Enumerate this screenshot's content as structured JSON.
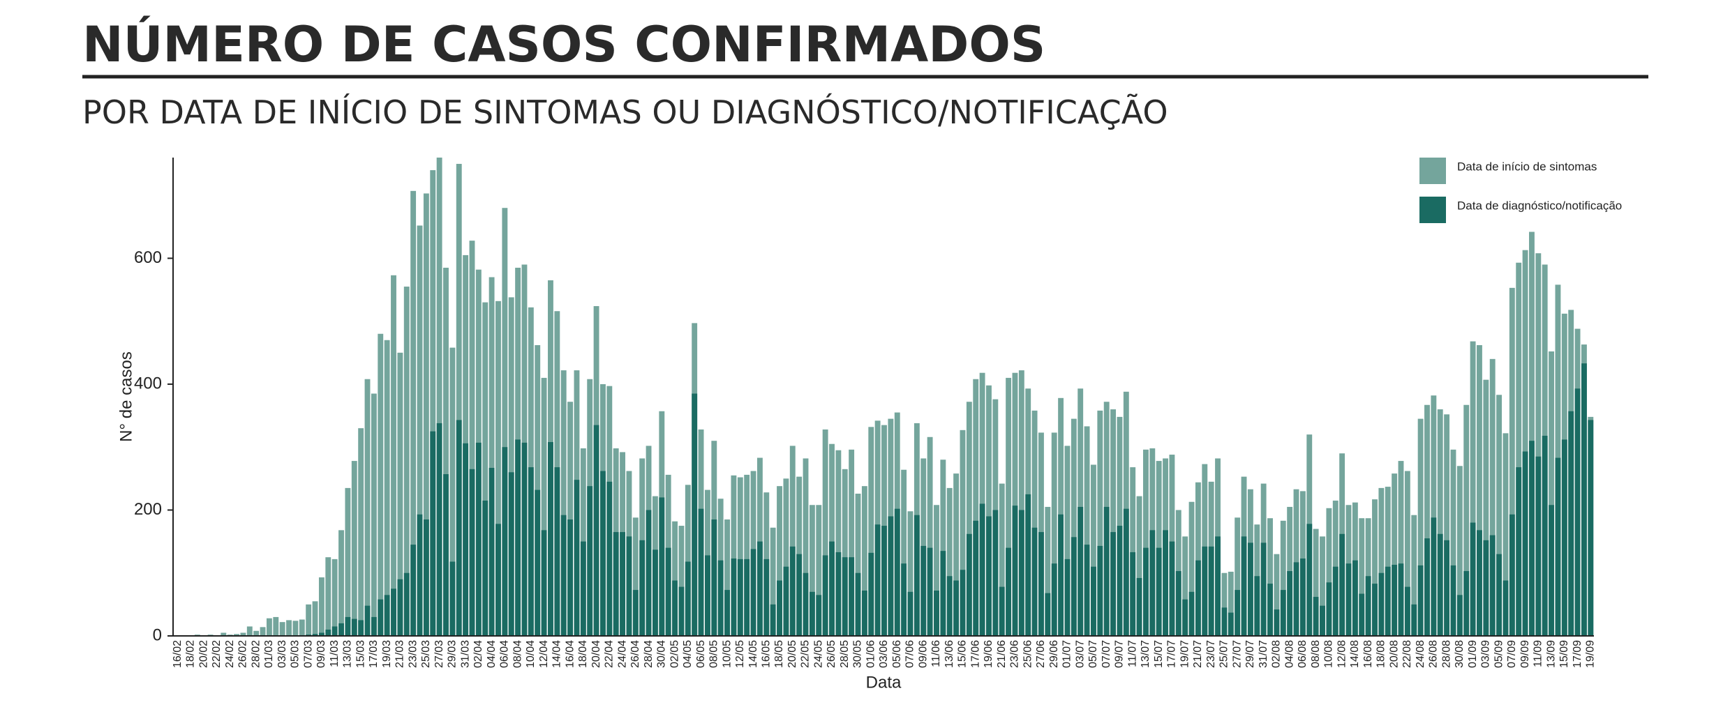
{
  "chart_data": {
    "type": "overlap-bar",
    "title": "NÚMERO DE CASOS CONFIRMADOS",
    "subtitle": "POR DATA DE INÍCIO DE SINTOMAS OU DIAGNÓSTICO/NOTIFICAÇÃO",
    "x_label": "Data",
    "y_label": "N° de casos",
    "ylim": [
      0,
      760
    ],
    "yticks": [
      0,
      200,
      400,
      600
    ],
    "legend": "top-right",
    "categories": [
      "16/02",
      null,
      "18/02",
      null,
      "20/02",
      null,
      "22/02",
      null,
      "24/02",
      null,
      "26/02",
      null,
      "28/02",
      null,
      "01/03",
      null,
      "03/03",
      null,
      "05/03",
      null,
      "07/03",
      null,
      "09/03",
      null,
      "11/03",
      null,
      "13/03",
      null,
      "15/03",
      null,
      "17/03",
      null,
      "19/03",
      null,
      "21/03",
      null,
      "23/03",
      null,
      "25/03",
      null,
      "27/03",
      null,
      "29/03",
      null,
      "31/03",
      null,
      "02/04",
      null,
      "04/04",
      null,
      "06/04",
      null,
      "08/04",
      null,
      "10/04",
      null,
      "12/04",
      null,
      "14/04",
      null,
      "16/04",
      null,
      "18/04",
      null,
      "20/04",
      null,
      "22/04",
      null,
      "24/04",
      null,
      "26/04",
      null,
      "28/04",
      null,
      "30/04",
      null,
      "02/05",
      null,
      "04/05",
      null,
      "06/05",
      null,
      "08/05",
      null,
      "10/05",
      null,
      "12/05",
      null,
      "14/05",
      null,
      "16/05",
      null,
      "18/05",
      null,
      "20/05",
      null,
      "22/05",
      null,
      "24/05",
      null,
      "26/05",
      null,
      "28/05",
      null,
      "30/05",
      null,
      "01/06",
      null,
      "03/06",
      null,
      "05/06",
      null,
      "07/06",
      null,
      "09/06",
      null,
      "11/06",
      null,
      "13/06",
      null,
      "15/06",
      null,
      "17/06",
      null,
      "19/06",
      null,
      "21/06",
      null,
      "23/06",
      null,
      "25/06",
      null,
      "27/06",
      null,
      "29/06",
      null,
      "01/07",
      null,
      "03/07",
      null,
      "05/07",
      null,
      "07/07",
      null,
      "09/07",
      null,
      "11/07",
      null,
      "13/07",
      null,
      "15/07",
      null,
      "17/07",
      null,
      "19/07",
      null,
      "21/07",
      null,
      "23/07",
      null,
      "25/07",
      null,
      "27/07",
      null,
      "29/07",
      null,
      "31/07",
      null,
      "02/08",
      null,
      "04/08",
      null,
      "06/08",
      null,
      "08/08",
      null,
      "10/08",
      null,
      "12/08",
      null,
      "14/08",
      null,
      "16/08",
      null,
      "18/08",
      null,
      "20/08",
      null,
      "22/08",
      null,
      "24/08",
      null,
      "26/08",
      null,
      "28/08",
      null,
      "30/08",
      null,
      "01/09",
      null,
      "03/09",
      null,
      "05/09",
      null,
      "07/09",
      null,
      "09/09",
      null,
      "11/09",
      null,
      "13/09",
      null,
      "15/09",
      null,
      "17/09",
      null,
      "19/09"
    ],
    "series": [
      {
        "name": "Data de início de sintomas",
        "color": "#74a59c",
        "values": [
          0,
          0,
          0,
          2,
          1,
          2,
          1,
          5,
          2,
          3,
          5,
          15,
          8,
          14,
          28,
          30,
          22,
          25,
          24,
          26,
          50,
          55,
          93,
          125,
          122,
          168,
          235,
          278,
          330,
          408,
          385,
          480,
          470,
          573,
          450,
          555,
          707,
          652,
          703,
          740,
          760,
          585,
          458,
          750,
          605,
          628,
          582,
          530,
          570,
          532,
          680,
          538,
          585,
          590,
          522,
          462,
          410,
          565,
          516,
          422,
          372,
          422,
          298,
          408,
          524,
          400,
          397,
          298,
          292,
          262,
          188,
          282,
          302,
          222,
          357,
          256,
          182,
          175,
          240,
          497,
          328,
          232,
          310,
          218,
          185,
          255,
          252,
          256,
          262,
          283,
          228,
          172,
          238,
          250,
          302,
          253,
          282,
          208,
          208,
          328,
          305,
          295,
          265,
          296,
          226,
          238,
          332,
          342,
          335,
          345,
          355,
          264,
          198,
          338,
          282,
          316,
          208,
          280,
          235,
          258,
          327,
          372,
          408,
          418,
          398,
          376,
          242,
          410,
          418,
          422,
          393,
          358,
          323,
          205,
          323,
          378,
          302,
          345,
          393,
          333,
          272,
          358,
          372,
          360,
          348,
          388,
          268,
          222,
          296,
          298,
          278,
          282,
          288,
          200,
          158,
          213,
          244,
          273,
          245,
          282,
          100,
          102,
          188,
          253,
          233,
          177,
          242,
          187,
          130,
          183,
          205,
          233,
          230,
          320,
          170,
          158,
          203,
          215,
          290,
          208,
          212,
          187,
          187,
          217,
          235,
          237,
          258,
          278,
          262,
          192,
          345,
          367,
          382,
          360,
          352,
          296,
          270,
          367,
          468,
          462,
          407,
          440,
          383,
          322,
          553,
          593,
          613,
          642,
          608,
          590,
          452,
          558,
          512,
          518,
          488,
          463,
          348
        ]
      },
      {
        "name": "Data de diagnóstico/notificação",
        "color": "#1a6b62",
        "values": [
          0,
          0,
          0,
          0,
          0,
          0,
          0,
          0,
          0,
          0,
          0,
          0,
          0,
          0,
          0,
          0,
          0,
          0,
          1,
          1,
          2,
          3,
          5,
          10,
          15,
          20,
          30,
          27,
          25,
          48,
          30,
          58,
          65,
          75,
          90,
          100,
          145,
          193,
          185,
          325,
          338,
          257,
          118,
          343,
          306,
          265,
          307,
          215,
          267,
          178,
          300,
          260,
          312,
          307,
          268,
          232,
          168,
          308,
          268,
          192,
          185,
          248,
          150,
          238,
          335,
          262,
          245,
          165,
          165,
          158,
          73,
          152,
          200,
          137,
          220,
          140,
          88,
          78,
          118,
          385,
          202,
          128,
          185,
          120,
          73,
          123,
          122,
          122,
          138,
          150,
          122,
          50,
          88,
          110,
          142,
          130,
          100,
          70,
          65,
          128,
          150,
          133,
          125,
          125,
          100,
          72,
          132,
          177,
          175,
          190,
          202,
          115,
          70,
          192,
          143,
          140,
          72,
          135,
          95,
          88,
          105,
          162,
          183,
          210,
          190,
          200,
          78,
          140,
          207,
          200,
          225,
          172,
          165,
          68,
          115,
          193,
          122,
          157,
          205,
          145,
          110,
          143,
          205,
          165,
          175,
          202,
          133,
          92,
          140,
          168,
          140,
          168,
          150,
          103,
          58,
          70,
          120,
          142,
          142,
          158,
          45,
          37,
          73,
          158,
          148,
          95,
          148,
          83,
          42,
          73,
          103,
          117,
          123,
          178,
          62,
          48,
          85,
          110,
          162,
          115,
          120,
          67,
          95,
          83,
          100,
          110,
          113,
          115,
          78,
          50,
          112,
          155,
          188,
          162,
          152,
          112,
          65,
          103,
          180,
          168,
          152,
          160,
          130,
          88,
          193,
          268,
          293,
          310,
          285,
          318,
          208,
          283,
          312,
          357,
          393,
          433,
          343
        ]
      }
    ]
  }
}
